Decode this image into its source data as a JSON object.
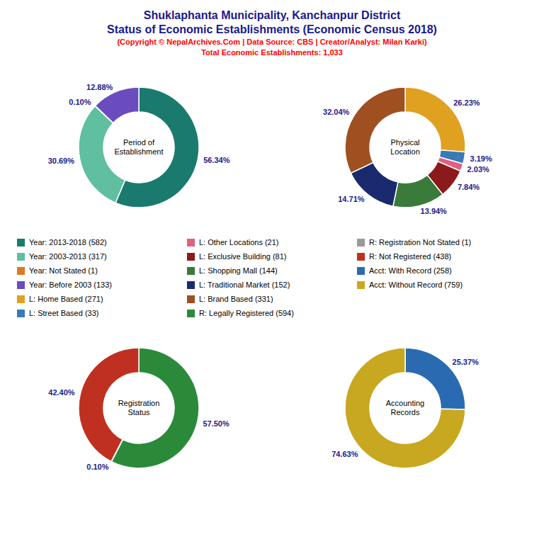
{
  "title": [
    "Shuklaphanta Municipality, Kanchanpur District",
    "Status of Economic Establishments (Economic Census 2018)"
  ],
  "subtitle": [
    "(Copyright © NepalArchives.Com | Data Source: CBS | Creator/Analyst: Milan Karki)",
    "Total Economic Establishments: 1,033"
  ],
  "chart_data": [
    {
      "type": "pie",
      "title": "Period of\nEstablishment",
      "categories": [
        "Year: 2013-2018 (582)",
        "Year: 2003-2013 (317)",
        "Year: Not Stated (1)",
        "Year: Before 2003 (133)"
      ],
      "values": [
        56.34,
        30.69,
        0.1,
        12.88
      ],
      "value_labels": [
        "56.34%",
        "30.69%",
        "0.10%",
        "12.88%"
      ],
      "colors": [
        "#1a7a6e",
        "#5fbfa0",
        "#e07820",
        "#6a4cbf"
      ],
      "data_labels": true
    },
    {
      "type": "pie",
      "title": "Physical\nLocation",
      "categories": [
        "L: Home Based (271)",
        "L: Street Based (33)",
        "L: Other Locations (21)",
        "L: Exclusive Building (81)",
        "L: Shopping Mall (144)",
        "L: Traditional Market (152)",
        "L: Brand Based (331)"
      ],
      "values": [
        26.23,
        3.19,
        2.03,
        7.84,
        13.94,
        14.71,
        32.04
      ],
      "value_labels": [
        "26.23%",
        "3.19%",
        "2.03%",
        "7.84%",
        "13.94%",
        "14.71%",
        "32.04%"
      ],
      "colors": [
        "#e0a020",
        "#3a7ab5",
        "#e06080",
        "#8b1a1a",
        "#3a7a3a",
        "#1a2a6e",
        "#a05020"
      ],
      "data_labels": true
    },
    {
      "type": "pie",
      "title": "Registration\nStatus",
      "categories": [
        "R: Legally Registered (594)",
        "R: Registration Not Stated (1)",
        "R: Not Registered (438)"
      ],
      "values": [
        57.5,
        0.1,
        42.4
      ],
      "value_labels": [
        "57.50%",
        "0.10%",
        "42.40%"
      ],
      "colors": [
        "#2a8a3a",
        "#999999",
        "#c03020"
      ],
      "data_labels": true
    },
    {
      "type": "pie",
      "title": "Accounting\nRecords",
      "categories": [
        "Acct: With Record (258)",
        "Acct: Without Record (759)"
      ],
      "values": [
        25.37,
        74.63
      ],
      "value_labels": [
        "25.37%",
        "74.63%"
      ],
      "colors": [
        "#2a6ab0",
        "#c8a820"
      ],
      "data_labels": true
    }
  ]
}
